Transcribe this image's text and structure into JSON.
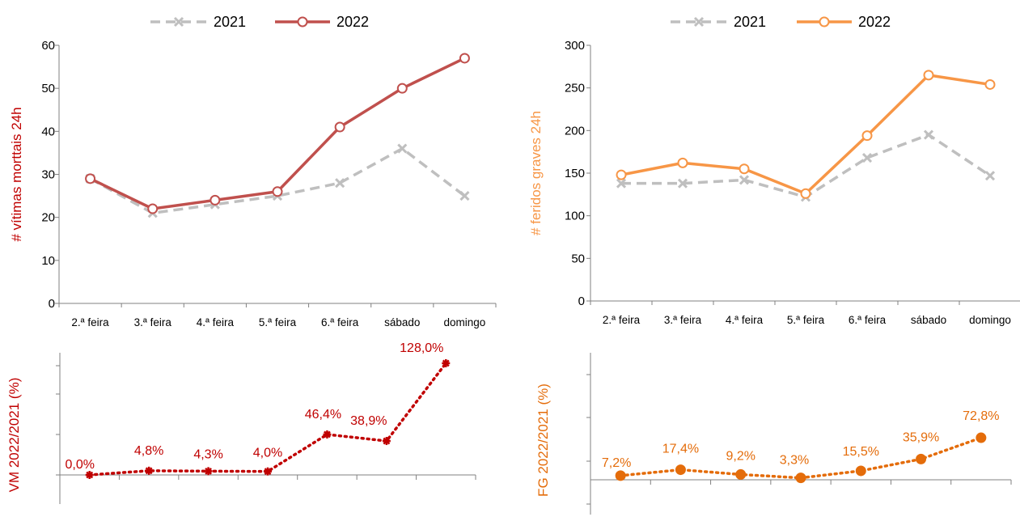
{
  "chart_data": [
    {
      "type": "line",
      "categories": [
        "2.ª feira",
        "3.ª feira",
        "4.ª feira",
        "5.ª feira",
        "6.ª feira",
        "sábado",
        "domingo"
      ],
      "series": [
        {
          "name": "2021",
          "values": [
            29,
            21,
            23,
            25,
            28,
            36,
            25
          ],
          "color": "#bfbfbf",
          "style": "dashed",
          "marker": "x"
        },
        {
          "name": "2022",
          "values": [
            29,
            22,
            24,
            26,
            41,
            50,
            57
          ],
          "color": "#c0504d",
          "style": "solid",
          "marker": "open-circle"
        }
      ],
      "ylabel": "# vítimas morttais 24h",
      "ylabel_color": "#c00000",
      "ylim": [
        0,
        60
      ],
      "yticks": [
        0,
        10,
        20,
        30,
        40,
        50,
        60
      ],
      "legend": "top"
    },
    {
      "type": "line",
      "categories": [
        "2.ª feira",
        "3.ª feira",
        "4.ª feira",
        "5.ª feira",
        "6.ª feira",
        "sábado",
        "domingo"
      ],
      "series": [
        {
          "name": "2021",
          "values": [
            138,
            138,
            142,
            122,
            168,
            195,
            147
          ],
          "color": "#bfbfbf",
          "style": "dashed",
          "marker": "x"
        },
        {
          "name": "2022",
          "values": [
            148,
            162,
            155,
            126,
            194,
            265,
            254
          ],
          "color": "#f79646",
          "style": "solid",
          "marker": "open-circle"
        }
      ],
      "ylabel": "# feridos graves 24h",
      "ylabel_color": "#f79646",
      "ylim": [
        0,
        300
      ],
      "yticks": [
        0,
        50,
        100,
        150,
        200,
        250,
        300
      ],
      "legend": "top"
    },
    {
      "type": "line",
      "categories": [
        "2.ª feira",
        "3.ª feira",
        "4.ª feira",
        "5.ª feira",
        "6.ª feira",
        "sábado",
        "domingo"
      ],
      "values": [
        0.0,
        4.8,
        4.3,
        4.0,
        46.4,
        38.9,
        128.0
      ],
      "labels": [
        "0,0%",
        "4,8%",
        "4,3%",
        "4,0%",
        "46,4%",
        "38,9%",
        "128,0%"
      ],
      "ylabel": "VM 2022/2021 (%)",
      "color": "#c00000",
      "style": "dotted",
      "ylim": [
        0,
        140
      ]
    },
    {
      "type": "line",
      "categories": [
        "2.ª feira",
        "3.ª feira",
        "4.ª feira",
        "5.ª feira",
        "6.ª feira",
        "sábado",
        "domingo"
      ],
      "values": [
        7.2,
        17.4,
        9.2,
        3.3,
        15.5,
        35.9,
        72.8
      ],
      "labels": [
        "7,2%",
        "17,4%",
        "9,2%",
        "3,3%",
        "15,5%",
        "35,9%",
        "72,8%"
      ],
      "ylabel": "FG 2022/2021 (%)",
      "color": "#e46c0a",
      "style": "dotted",
      "ylim": [
        -80,
        220
      ]
    }
  ]
}
